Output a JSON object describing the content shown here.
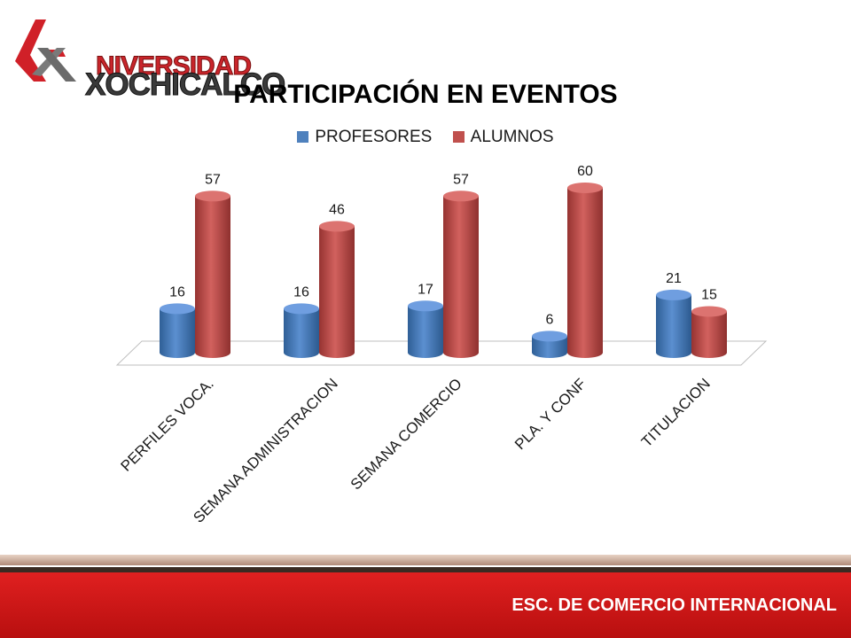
{
  "logo": {
    "line1": "NIVERSIDAD",
    "line2": "XOCHICALCO"
  },
  "footer": {
    "text": "ESC. DE COMERCIO INTERNACIONAL"
  },
  "chart_data": {
    "type": "bar",
    "title": "PARTICIPACIÓN EN EVENTOS",
    "categories": [
      "PERFILES VOCA.",
      "SEMANA ADMINISTRACION",
      "SEMANA COMERCIO",
      "PLA. Y CONF",
      "TITULACION"
    ],
    "series": [
      {
        "name": "PROFESORES",
        "values": [
          16,
          16,
          17,
          6,
          21
        ],
        "color": "#4f81bd"
      },
      {
        "name": "ALUMNOS",
        "values": [
          57,
          46,
          57,
          60,
          15
        ],
        "color": "#c0504d"
      }
    ],
    "legend_position": "top",
    "grid": false,
    "ylim": [
      0,
      60
    ],
    "style": "3d-cylinder"
  }
}
